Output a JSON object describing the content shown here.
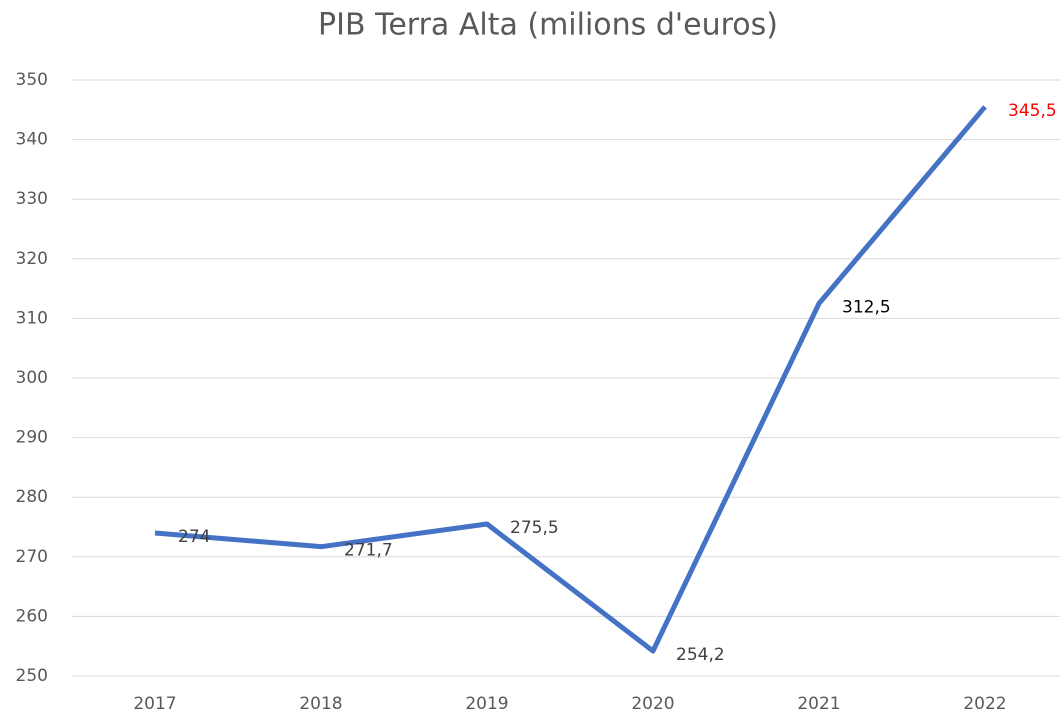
{
  "chart_data": {
    "type": "line",
    "title": "PIB Terra Alta (milions d'euros)",
    "categories": [
      "2017",
      "2018",
      "2019",
      "2020",
      "2021",
      "2022"
    ],
    "values": [
      274,
      271.7,
      275.5,
      254.2,
      312.5,
      345.5
    ],
    "value_labels": [
      "274",
      "271,7",
      "275,5",
      "254,2",
      "312,5",
      "345,5"
    ],
    "value_label_colors": [
      "#404040",
      "#404040",
      "#404040",
      "#404040",
      "#000000",
      "#ff0000"
    ],
    "color": "#4472c4",
    "ylim": [
      250,
      350
    ],
    "yticks": [
      250,
      260,
      270,
      280,
      290,
      300,
      310,
      320,
      330,
      340,
      350
    ],
    "grid": true
  }
}
